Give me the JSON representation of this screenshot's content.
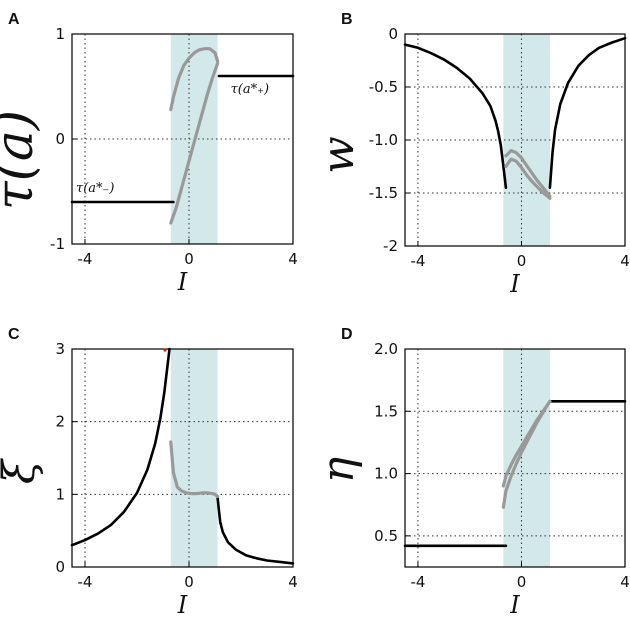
{
  "chart_data": [
    {
      "panel": "A",
      "type": "line",
      "xlabel": "I",
      "ylabel": "τ(a)",
      "xlim": [
        -4.5,
        4
      ],
      "ylim": [
        -1,
        1
      ],
      "xticks": [
        -4,
        0,
        4
      ],
      "yticks": [
        -1,
        0,
        1
      ],
      "xtick_labels": [
        "-4",
        "0",
        "4"
      ],
      "ytick_labels": [
        "-1",
        "0",
        "1"
      ],
      "shaded_region": [
        -0.7,
        1.1
      ],
      "annotations": [
        "τ(a*₋)",
        "τ(a*₊)"
      ],
      "series": [
        {
          "name": "stable-low",
          "color": "#000000",
          "x": [
            -4.5,
            -0.6
          ],
          "y": [
            -0.6,
            -0.6
          ]
        },
        {
          "name": "stable-high",
          "color": "#000000",
          "x": [
            1.15,
            4
          ],
          "y": [
            0.6,
            0.6
          ]
        },
        {
          "name": "branch-upper",
          "color": "#999999",
          "x": [
            -0.7,
            -0.6,
            -0.4,
            -0.2,
            0.0,
            0.2,
            0.4,
            0.6,
            0.8,
            1.0,
            1.1
          ],
          "y": [
            0.28,
            0.4,
            0.58,
            0.7,
            0.77,
            0.82,
            0.85,
            0.86,
            0.86,
            0.82,
            0.74
          ]
        },
        {
          "name": "branch-lower",
          "color": "#999999",
          "x": [
            -0.7,
            -0.5,
            -0.3,
            -0.1,
            0.1,
            0.3,
            0.5,
            0.7,
            0.9,
            1.1
          ],
          "y": [
            -0.8,
            -0.66,
            -0.48,
            -0.3,
            -0.12,
            0.06,
            0.24,
            0.42,
            0.58,
            0.72
          ]
        }
      ]
    },
    {
      "panel": "B",
      "type": "line",
      "xlabel": "I",
      "ylabel": "w",
      "xlim": [
        -4.5,
        4
      ],
      "ylim": [
        -2,
        0
      ],
      "xticks": [
        -4,
        0,
        4
      ],
      "yticks": [
        -2,
        -1.5,
        -1,
        -0.5,
        0
      ],
      "xtick_labels": [
        "-4",
        "0",
        "4"
      ],
      "ytick_labels": [
        "-2",
        "-1.5",
        "-1.0",
        "-0.5",
        "0"
      ],
      "shaded_region": [
        -0.7,
        1.1
      ],
      "series": [
        {
          "name": "left-branch",
          "color": "#000000",
          "x": [
            -4.5,
            -4,
            -3.5,
            -3,
            -2.5,
            -2,
            -1.5,
            -1.2,
            -1.0,
            -0.9,
            -0.8,
            -0.7,
            -0.6
          ],
          "y": [
            -0.1,
            -0.13,
            -0.18,
            -0.24,
            -0.32,
            -0.42,
            -0.56,
            -0.68,
            -0.82,
            -0.92,
            -1.05,
            -1.25,
            -1.45
          ]
        },
        {
          "name": "right-branch",
          "color": "#000000",
          "x": [
            1.1,
            1.2,
            1.3,
            1.5,
            1.8,
            2.2,
            2.6,
            3.0,
            3.5,
            4.0
          ],
          "y": [
            -1.45,
            -1.12,
            -0.9,
            -0.66,
            -0.46,
            -0.3,
            -0.2,
            -0.13,
            -0.08,
            -0.04
          ]
        },
        {
          "name": "gray-upper",
          "color": "#999999",
          "x": [
            -0.6,
            -0.4,
            -0.2,
            0.0,
            0.2,
            0.4,
            0.6,
            0.8,
            1.0,
            1.1
          ],
          "y": [
            -1.15,
            -1.1,
            -1.12,
            -1.17,
            -1.24,
            -1.31,
            -1.38,
            -1.44,
            -1.5,
            -1.53
          ]
        },
        {
          "name": "gray-lower",
          "color": "#999999",
          "x": [
            -0.6,
            -0.4,
            -0.2,
            0.0,
            0.2,
            0.4,
            0.6,
            0.8,
            1.0,
            1.1
          ],
          "y": [
            -1.25,
            -1.18,
            -1.2,
            -1.26,
            -1.33,
            -1.39,
            -1.44,
            -1.49,
            -1.53,
            -1.55
          ]
        }
      ]
    },
    {
      "panel": "C",
      "type": "line",
      "xlabel": "I",
      "ylabel": "ξ",
      "xlim": [
        -4.5,
        4
      ],
      "ylim": [
        0,
        3
      ],
      "xticks": [
        -4,
        0,
        4
      ],
      "yticks": [
        0,
        1,
        2,
        3
      ],
      "xtick_labels": [
        "-4",
        "0",
        "4"
      ],
      "ytick_labels": [
        "0",
        "1",
        "2",
        "3"
      ],
      "shaded_region": [
        -0.7,
        1.1
      ],
      "series": [
        {
          "name": "left-branch",
          "color": "#000000",
          "x": [
            -4.5,
            -4,
            -3.5,
            -3,
            -2.5,
            -2,
            -1.6,
            -1.3,
            -1.1,
            -0.95,
            -0.85,
            -0.75
          ],
          "y": [
            0.3,
            0.37,
            0.46,
            0.58,
            0.76,
            1.02,
            1.34,
            1.7,
            2.05,
            2.4,
            2.7,
            3.0
          ]
        },
        {
          "name": "right-branch",
          "color": "#000000",
          "x": [
            1.1,
            1.2,
            1.3,
            1.5,
            1.8,
            2.2,
            2.6,
            3.0,
            3.5,
            4.0
          ],
          "y": [
            0.95,
            0.62,
            0.48,
            0.34,
            0.24,
            0.16,
            0.12,
            0.09,
            0.07,
            0.05
          ]
        },
        {
          "name": "gray-branch",
          "color": "#999999",
          "x": [
            -0.7,
            -0.6,
            -0.45,
            -0.3,
            -0.1,
            0.1,
            0.3,
            0.5,
            0.7,
            0.9,
            1.0,
            1.1
          ],
          "y": [
            1.72,
            1.3,
            1.1,
            1.05,
            1.02,
            1.01,
            1.01,
            1.02,
            1.02,
            1.01,
            1.0,
            0.97
          ]
        }
      ]
    },
    {
      "panel": "D",
      "type": "line",
      "xlabel": "I",
      "ylabel": "η",
      "xlim": [
        -4.5,
        4
      ],
      "ylim": [
        0.25,
        2.0
      ],
      "xticks": [
        -4,
        0,
        4
      ],
      "yticks": [
        0.5,
        1.0,
        1.5,
        2.0
      ],
      "xtick_labels": [
        "-4",
        "0",
        "4"
      ],
      "ytick_labels": [
        "0.5",
        "1.0",
        "1.5",
        "2.0"
      ],
      "shaded_region": [
        -0.7,
        1.1
      ],
      "series": [
        {
          "name": "stable-low",
          "color": "#000000",
          "x": [
            -4.5,
            -0.6
          ],
          "y": [
            0.42,
            0.42
          ]
        },
        {
          "name": "stable-high",
          "color": "#000000",
          "x": [
            1.1,
            4
          ],
          "y": [
            1.58,
            1.58
          ]
        },
        {
          "name": "gray-upper",
          "color": "#999999",
          "x": [
            -0.7,
            -0.6,
            -0.4,
            -0.2,
            0.0,
            0.2,
            0.4,
            0.6,
            0.8,
            1.0,
            1.1
          ],
          "y": [
            0.9,
            0.98,
            1.07,
            1.15,
            1.22,
            1.29,
            1.36,
            1.43,
            1.49,
            1.55,
            1.58
          ]
        },
        {
          "name": "gray-lower",
          "color": "#999999",
          "x": [
            -0.7,
            -0.6,
            -0.4,
            -0.2,
            0.0,
            0.2,
            0.4,
            0.6,
            0.8,
            1.0,
            1.1
          ],
          "y": [
            0.73,
            0.86,
            0.98,
            1.08,
            1.17,
            1.25,
            1.33,
            1.41,
            1.48,
            1.55,
            1.58
          ]
        }
      ]
    }
  ]
}
